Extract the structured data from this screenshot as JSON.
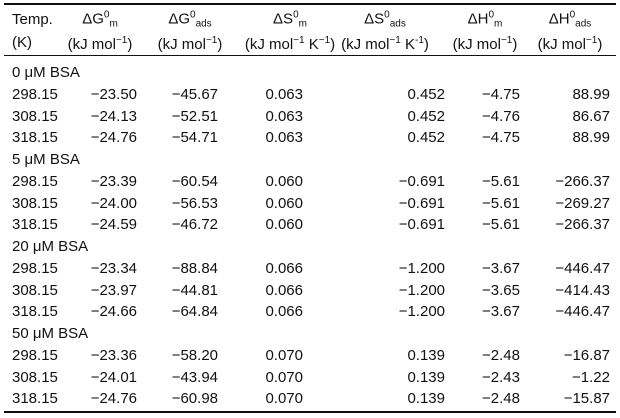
{
  "table": {
    "header": [
      {
        "line1": [
          {
            "text": "Temp.",
            "pos": "base"
          }
        ],
        "line2": [
          {
            "text": "(K)",
            "pos": "base"
          }
        ]
      },
      {
        "line1": [
          {
            "text": "ΔG",
            "pos": "base"
          },
          {
            "text": "0",
            "pos": "sup"
          },
          {
            "text": "m",
            "pos": "sub"
          }
        ],
        "line2": [
          {
            "text": "(kJ mol",
            "pos": "base"
          },
          {
            "text": "−1",
            "pos": "sup"
          },
          {
            "text": ")",
            "pos": "base"
          }
        ]
      },
      {
        "line1": [
          {
            "text": "ΔG",
            "pos": "base"
          },
          {
            "text": "0",
            "pos": "sup"
          },
          {
            "text": "ads",
            "pos": "sub"
          }
        ],
        "line2": [
          {
            "text": "(kJ mol",
            "pos": "base"
          },
          {
            "text": "−1",
            "pos": "sup"
          },
          {
            "text": ")",
            "pos": "base"
          }
        ]
      },
      {
        "line1": [
          {
            "text": "ΔS",
            "pos": "base"
          },
          {
            "text": "0",
            "pos": "sup"
          },
          {
            "text": "m",
            "pos": "sub"
          }
        ],
        "line2": [
          {
            "text": "(kJ mol",
            "pos": "base"
          },
          {
            "text": "−1",
            "pos": "sup"
          },
          {
            "text": " K",
            "pos": "base"
          },
          {
            "text": "−1",
            "pos": "sup"
          },
          {
            "text": ")",
            "pos": "base"
          }
        ]
      },
      {
        "line1": [
          {
            "text": "ΔS",
            "pos": "base"
          },
          {
            "text": "0",
            "pos": "sup"
          },
          {
            "text": "ads",
            "pos": "sub"
          }
        ],
        "line2": [
          {
            "text": "(kJ mol",
            "pos": "base"
          },
          {
            "text": "−1",
            "pos": "sup"
          },
          {
            "text": " K",
            "pos": "base"
          },
          {
            "text": "-1",
            "pos": "sup"
          },
          {
            "text": ")",
            "pos": "base"
          }
        ]
      },
      {
        "line1": [
          {
            "text": "ΔH",
            "pos": "base"
          },
          {
            "text": "0",
            "pos": "sup"
          },
          {
            "text": "m",
            "pos": "sub"
          }
        ],
        "line2": [
          {
            "text": "(kJ mol",
            "pos": "base"
          },
          {
            "text": "−1",
            "pos": "sup"
          },
          {
            "text": ")",
            "pos": "base"
          }
        ]
      },
      {
        "line1": [
          {
            "text": "ΔH",
            "pos": "base"
          },
          {
            "text": "0",
            "pos": "sup"
          },
          {
            "text": "ads",
            "pos": "sub"
          }
        ],
        "line2": [
          {
            "text": "(kJ mol",
            "pos": "base"
          },
          {
            "text": "−1",
            "pos": "sup"
          },
          {
            "text": ")",
            "pos": "base"
          }
        ]
      }
    ],
    "groups": [
      {
        "label": "0 μM BSA",
        "rows": [
          [
            "298.15",
            "−23.50",
            "−45.67",
            "0.063",
            "0.452",
            "−4.75",
            "88.99"
          ],
          [
            "308.15",
            "−24.13",
            "−52.51",
            "0.063",
            "0.452",
            "−4.76",
            "86.67"
          ],
          [
            "318.15",
            "−24.76",
            "−54.71",
            "0.063",
            "0.452",
            "−4.75",
            "88.99"
          ]
        ]
      },
      {
        "label": "5 μM BSA",
        "rows": [
          [
            "298.15",
            "−23.39",
            "−60.54",
            "0.060",
            "−0.691",
            "−5.61",
            "−266.37"
          ],
          [
            "308.15",
            "−24.00",
            "−56.53",
            "0.060",
            "−0.691",
            "−5.61",
            "−269.27"
          ],
          [
            "318.15",
            "−24.59",
            "−46.72",
            "0.060",
            "−0.691",
            "−5.61",
            "−266.37"
          ]
        ]
      },
      {
        "label": "20 μM BSA",
        "rows": [
          [
            "298.15",
            "−23.34",
            "−88.84",
            "0.066",
            "−1.200",
            "−3.67",
            "−446.47"
          ],
          [
            "308.15",
            "−23.97",
            "−44.81",
            "0.066",
            "−1.200",
            "−3.65",
            "−414.43"
          ],
          [
            "318.15",
            "−24.66",
            "−64.84",
            "0.066",
            "−1.200",
            "−3.67",
            "−446.47"
          ]
        ]
      },
      {
        "label": "50 μM BSA",
        "rows": [
          [
            "298.15",
            "−23.36",
            "−58.20",
            "0.070",
            "0.139",
            "−2.48",
            "−16.87"
          ],
          [
            "308.15",
            "−24.01",
            "−43.94",
            "0.070",
            "0.139",
            "−2.43",
            "−1.22"
          ],
          [
            "318.15",
            "−24.76",
            "−60.98",
            "0.070",
            "0.139",
            "−2.48",
            "−15.87"
          ]
        ]
      }
    ]
  }
}
